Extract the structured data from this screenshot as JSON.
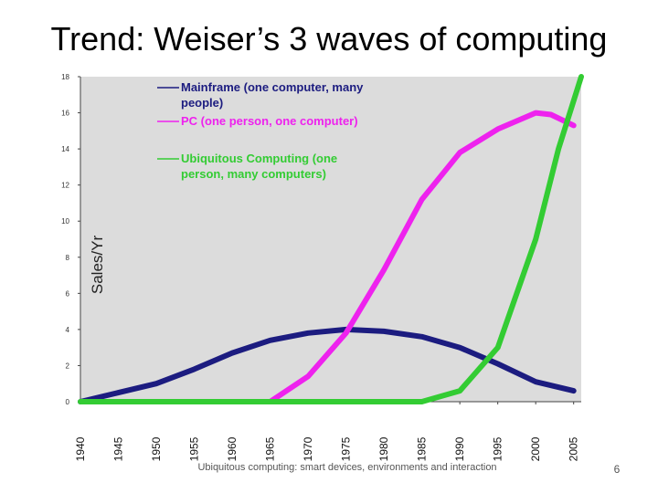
{
  "slide": {
    "title": "Trend: Weiser’s 3 waves of computing",
    "footer": "Ubiquitous computing: smart devices, environments and interaction",
    "page_number": "6"
  },
  "chart_data": {
    "type": "line",
    "title": "",
    "xlabel": "",
    "ylabel": "Sales/Yr",
    "xlim": [
      1940,
      2006
    ],
    "ylim": [
      0,
      18
    ],
    "x_ticks": [
      1940,
      1945,
      1950,
      1955,
      1960,
      1965,
      1970,
      1975,
      1980,
      1985,
      1990,
      1995,
      2000,
      2005
    ],
    "y_ticks": [
      0,
      2,
      4,
      6,
      8,
      10,
      12,
      14,
      16,
      18
    ],
    "grid": false,
    "legend_position": "top-left",
    "background_color": "#dcdcdc",
    "series": [
      {
        "name": "Mainframe (one computer, many people)",
        "legend_lines": [
          "Mainframe (one computer, many",
          "people)"
        ],
        "color": "#1c1c80",
        "points": [
          [
            1940,
            0
          ],
          [
            1945,
            0.5
          ],
          [
            1950,
            1.0
          ],
          [
            1955,
            1.8
          ],
          [
            1960,
            2.7
          ],
          [
            1965,
            3.4
          ],
          [
            1970,
            3.8
          ],
          [
            1975,
            4.0
          ],
          [
            1980,
            3.9
          ],
          [
            1985,
            3.6
          ],
          [
            1990,
            3.0
          ],
          [
            1995,
            2.1
          ],
          [
            2000,
            1.1
          ],
          [
            2005,
            0.6
          ]
        ]
      },
      {
        "name": "PC (one person, one computer)",
        "legend_lines": [
          "PC (one person, one computer)"
        ],
        "color": "#ee22ee",
        "points": [
          [
            1965,
            0
          ],
          [
            1970,
            1.4
          ],
          [
            1975,
            3.8
          ],
          [
            1980,
            7.3
          ],
          [
            1985,
            11.2
          ],
          [
            1990,
            13.8
          ],
          [
            1995,
            15.1
          ],
          [
            2000,
            16.0
          ],
          [
            2002,
            15.9
          ],
          [
            2005,
            15.3
          ]
        ]
      },
      {
        "name": "Ubiquitous Computing (one person, many computers)",
        "legend_lines": [
          "Ubiquitous Computing (one",
          "person, many computers)"
        ],
        "color": "#33cc33",
        "points": [
          [
            1940,
            0
          ],
          [
            1985,
            0
          ],
          [
            1990,
            0.6
          ],
          [
            1995,
            3.0
          ],
          [
            2000,
            9.0
          ],
          [
            2003,
            14.0
          ],
          [
            2006,
            18.0
          ]
        ]
      }
    ]
  }
}
